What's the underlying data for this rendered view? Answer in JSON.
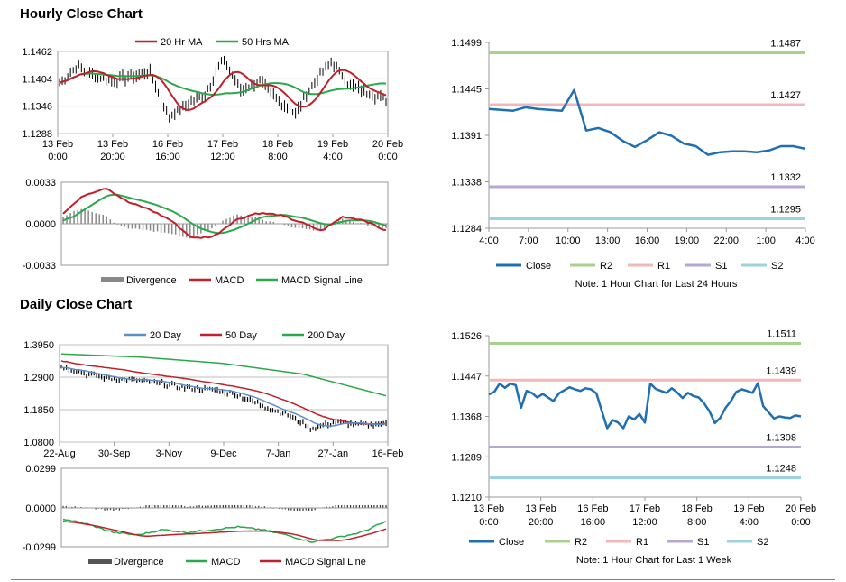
{
  "hourly": {
    "title": "Hourly Close Chart",
    "price": {
      "type": "line",
      "legend": [
        "20 Hr MA",
        "50 Hrs MA"
      ],
      "y_ticks": [
        "1.1462",
        "1.1404",
        "1.1346",
        "1.1288"
      ],
      "x_ticks": [
        [
          "13 Feb",
          "0:00"
        ],
        [
          "13 Feb",
          "20:00"
        ],
        [
          "16 Feb",
          "16:00"
        ],
        [
          "17 Feb",
          "12:00"
        ],
        [
          "18 Feb",
          "8:00"
        ],
        [
          "19 Feb",
          "4:00"
        ],
        [
          "20 Feb",
          "0:00"
        ]
      ],
      "ylim": [
        1.1288,
        1.1462
      ]
    },
    "macd": {
      "legend": [
        "Divergence",
        "MACD",
        "MACD Signal Line"
      ],
      "y_ticks": [
        "0.0033",
        "0.0000",
        "-0.0033"
      ],
      "ylim": [
        -0.0033,
        0.0033
      ]
    }
  },
  "daily": {
    "title": "Daily Close Chart",
    "price": {
      "legend": [
        "20 Day",
        "50 Day",
        "200 Day"
      ],
      "y_ticks": [
        "1.3950",
        "1.2900",
        "1.1850",
        "1.0800"
      ],
      "x_ticks": [
        "22-Aug",
        "30-Sep",
        "3-Nov",
        "9-Dec",
        "7-Jan",
        "27-Jan",
        "16-Feb"
      ],
      "ylim": [
        1.08,
        1.395
      ]
    },
    "macd": {
      "legend": [
        "Divergence",
        "MACD",
        "MACD Signal Line"
      ],
      "y_ticks": [
        "0.0299",
        "0.0000",
        "-0.0299"
      ],
      "ylim": [
        -0.0299,
        0.0299
      ]
    }
  },
  "colors": {
    "close": "#1f6fb5",
    "r2": "#a9d18e",
    "r1": "#f4b6b6",
    "s1": "#b4a7d6",
    "s2": "#9dd3e0",
    "ma_red": "#c0202a",
    "ma_green": "#2aa84a",
    "ma_blue": "#5b8fc7",
    "divergence": "#888888"
  },
  "chart_data": [
    {
      "type": "line",
      "id": "hourly_pivots",
      "y_ticks": [
        "1.1499",
        "1.1445",
        "1.1391",
        "1.1338",
        "1.1284"
      ],
      "x_ticks": [
        "4:00",
        "7:00",
        "10:00",
        "13:00",
        "16:00",
        "19:00",
        "22:00",
        "1:00",
        "4:00"
      ],
      "ylim": [
        1.1284,
        1.1499
      ],
      "series": [
        {
          "name": "Close",
          "values": [
            1.1422,
            1.1421,
            1.142,
            1.1424,
            1.1422,
            1.1421,
            1.142,
            1.1444,
            1.1397,
            1.14,
            1.1395,
            1.1385,
            1.1378,
            1.1386,
            1.1395,
            1.1391,
            1.1382,
            1.1379,
            1.1369,
            1.1372,
            1.1373,
            1.1373,
            1.1372,
            1.1374,
            1.1379,
            1.1379,
            1.1376
          ]
        }
      ],
      "levels": [
        {
          "name": "R2",
          "value": 1.1487,
          "label": "1.1487"
        },
        {
          "name": "R1",
          "value": 1.1427,
          "label": "1.1427"
        },
        {
          "name": "S1",
          "value": 1.1332,
          "label": "1.1332"
        },
        {
          "name": "S2",
          "value": 1.1295,
          "label": "1.1295"
        }
      ],
      "note": "Note: 1 Hour Chart for Last 24 Hours"
    },
    {
      "type": "line",
      "id": "weekly_pivots",
      "y_ticks": [
        "1.1526",
        "1.1447",
        "1.1368",
        "1.1289",
        "1.1210"
      ],
      "x_ticks": [
        [
          "13 Feb",
          "0:00"
        ],
        [
          "13 Feb",
          "20:00"
        ],
        [
          "16 Feb",
          "16:00"
        ],
        [
          "17 Feb",
          "12:00"
        ],
        [
          "18 Feb",
          "8:00"
        ],
        [
          "19 Feb",
          "4:00"
        ],
        [
          "20 Feb",
          "0:00"
        ]
      ],
      "ylim": [
        1.121,
        1.1526
      ],
      "series": [
        {
          "name": "Close",
          "values": [
            1.1411,
            1.1416,
            1.1432,
            1.1424,
            1.1432,
            1.1429,
            1.1385,
            1.1418,
            1.1414,
            1.1405,
            1.1412,
            1.1405,
            1.1398,
            1.1413,
            1.1419,
            1.1425,
            1.1421,
            1.1418,
            1.1423,
            1.1421,
            1.1413,
            1.1378,
            1.1345,
            1.1361,
            1.1356,
            1.1345,
            1.1368,
            1.1362,
            1.1373,
            1.1356,
            1.1432,
            1.1422,
            1.1418,
            1.1414,
            1.1423,
            1.1415,
            1.1404,
            1.1414,
            1.1408,
            1.1405,
            1.1394,
            1.1378,
            1.1355,
            1.1365,
            1.1385,
            1.1398,
            1.1416,
            1.1421,
            1.1418,
            1.1414,
            1.1433,
            1.1388,
            1.1376,
            1.1364,
            1.1368,
            1.1366,
            1.1365,
            1.137,
            1.1368
          ]
        }
      ],
      "levels": [
        {
          "name": "R2",
          "value": 1.1511,
          "label": "1.1511"
        },
        {
          "name": "R1",
          "value": 1.1439,
          "label": "1.1439"
        },
        {
          "name": "S1",
          "value": 1.1308,
          "label": "1.1308"
        },
        {
          "name": "S2",
          "value": 1.1248,
          "label": "1.1248"
        }
      ],
      "note": "Note: 1 Hour Chart for Last 1 Week"
    }
  ]
}
